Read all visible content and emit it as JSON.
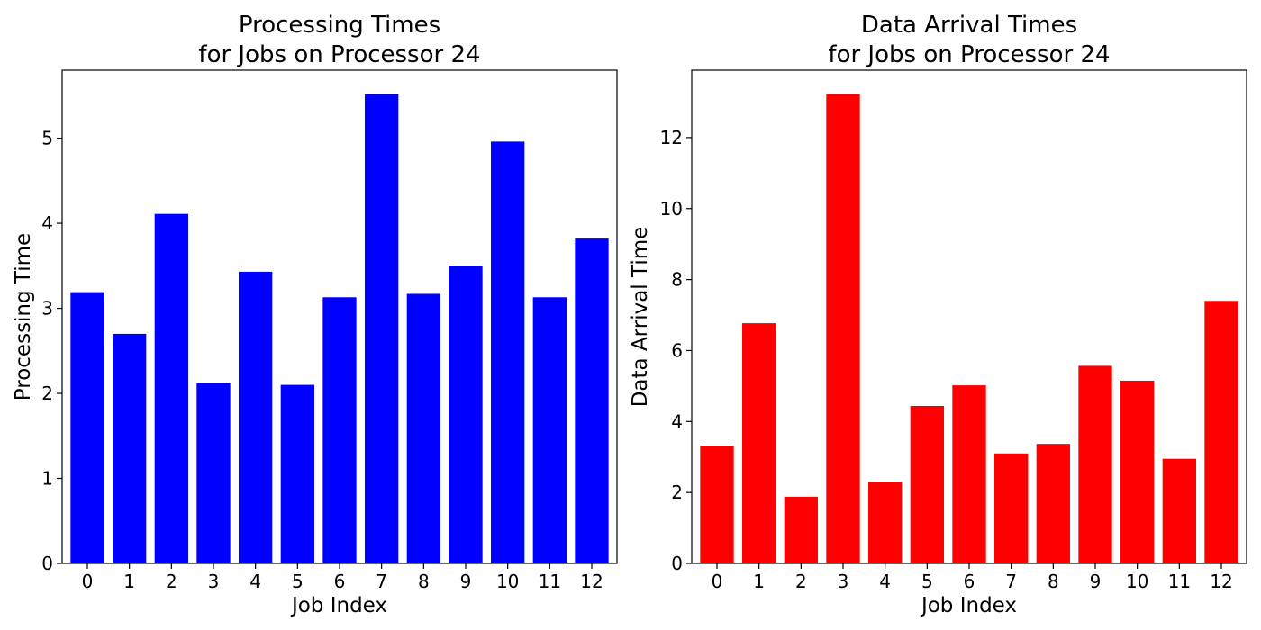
{
  "chart_data": [
    {
      "type": "bar",
      "title_lines": [
        "Processing Times",
        "for Jobs on Processor 24"
      ],
      "xlabel": "Job Index",
      "ylabel": "Processing Time",
      "categories": [
        "0",
        "1",
        "2",
        "3",
        "4",
        "5",
        "6",
        "7",
        "8",
        "9",
        "10",
        "11",
        "12"
      ],
      "values": [
        3.19,
        2.7,
        4.11,
        2.12,
        3.43,
        2.1,
        3.13,
        5.52,
        3.17,
        3.5,
        4.96,
        3.13,
        3.82
      ],
      "yticks": [
        0,
        1,
        2,
        3,
        4,
        5
      ],
      "ylim": [
        0,
        5.8
      ],
      "color": "#0000ff",
      "grid": false
    },
    {
      "type": "bar",
      "title_lines": [
        "Data Arrival Times",
        "for Jobs on Processor 24"
      ],
      "xlabel": "Job Index",
      "ylabel": "Data Arrival Time",
      "categories": [
        "0",
        "1",
        "2",
        "3",
        "4",
        "5",
        "6",
        "7",
        "8",
        "9",
        "10",
        "11",
        "12"
      ],
      "values": [
        3.32,
        6.77,
        1.88,
        13.23,
        2.29,
        4.44,
        5.02,
        3.1,
        3.37,
        5.57,
        5.15,
        2.95,
        7.4
      ],
      "yticks": [
        0,
        2,
        4,
        6,
        8,
        10,
        12
      ],
      "ylim": [
        0,
        13.9
      ],
      "color": "#ff0000",
      "grid": false
    }
  ]
}
